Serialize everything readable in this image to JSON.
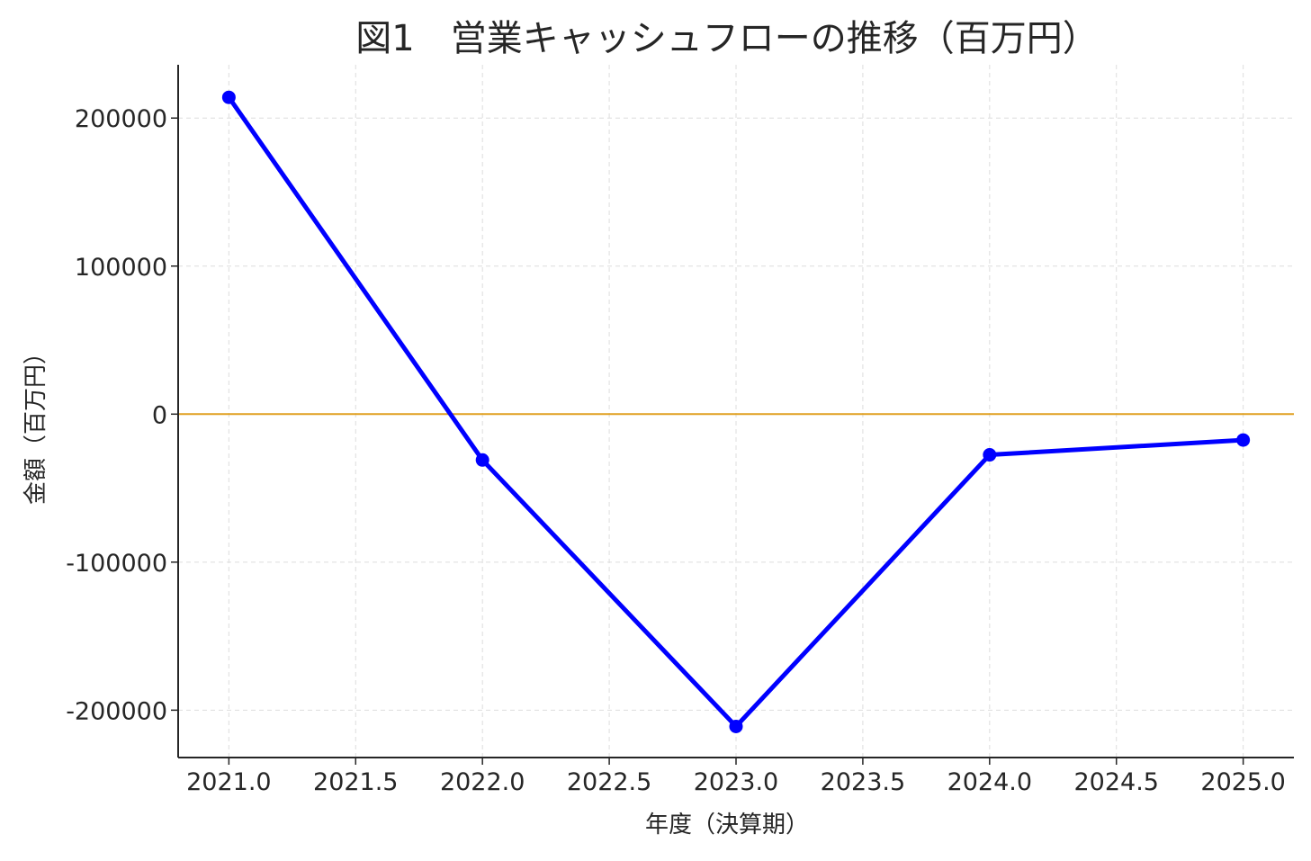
{
  "chart_data": {
    "type": "line",
    "title": "図1　営業キャッシュフローの推移（百万円）",
    "xlabel": "年度（決算期）",
    "ylabel": "金額（百万円）",
    "x": [
      2021,
      2022,
      2023,
      2024,
      2025
    ],
    "series": [
      {
        "values": [
          214000,
          -31000,
          -211000,
          -27500,
          -17500
        ],
        "color": "#0000ff",
        "marker": "circle"
      }
    ],
    "reference_line": {
      "y": 0,
      "color": "#e0a020"
    },
    "xlim": [
      2020.8,
      2025.2
    ],
    "ylim": [
      -232000,
      236000
    ],
    "xticks": [
      "2021.0",
      "2021.5",
      "2022.0",
      "2022.5",
      "2023.0",
      "2023.5",
      "2024.0",
      "2024.5",
      "2025.0"
    ],
    "yticks": [
      "-200000",
      "-100000",
      "0",
      "100000",
      "200000"
    ],
    "grid": true,
    "legend": false
  },
  "colors": {
    "axis": "#262626",
    "grid": "#dddddd",
    "text": "#262626"
  }
}
